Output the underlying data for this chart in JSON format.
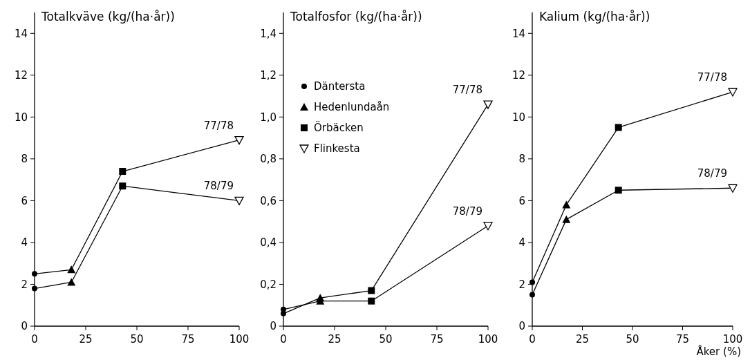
{
  "chart_data": [
    {
      "type": "line",
      "title": "Totalkväve (kg/(ha·år))",
      "xlim": [
        0,
        100
      ],
      "xticks": [
        0,
        25,
        50,
        75,
        100
      ],
      "ylim": [
        0,
        15
      ],
      "yticks": [
        0,
        2,
        4,
        6,
        8,
        10,
        12,
        14
      ],
      "grid": false,
      "legend": false,
      "line_style": "solid",
      "series": [
        {
          "name": "77/78",
          "type": "line",
          "marker": "none",
          "color": "#000000",
          "x": [
            0,
            18,
            43,
            100
          ],
          "values": [
            2.5,
            2.7,
            7.4,
            8.9
          ]
        },
        {
          "name": "78/79",
          "type": "line",
          "marker": "none",
          "color": "#000000",
          "x": [
            0,
            18,
            43,
            100
          ],
          "values": [
            1.8,
            2.1,
            6.7,
            6.0
          ]
        },
        {
          "type": "scatter",
          "marker": "circle",
          "color": "#000000",
          "x": [
            0,
            0
          ],
          "values": [
            2.5,
            1.8
          ]
        },
        {
          "type": "scatter",
          "marker": "triangle",
          "color": "#000000",
          "x": [
            18,
            18
          ],
          "values": [
            2.7,
            2.1
          ]
        },
        {
          "type": "scatter",
          "marker": "square",
          "color": "#000000",
          "x": [
            43,
            43
          ],
          "values": [
            7.4,
            6.7
          ]
        },
        {
          "type": "scatter",
          "marker": "triangle-down-open",
          "color": "#000000",
          "x": [
            100,
            100
          ],
          "values": [
            8.9,
            6.0
          ]
        }
      ]
    },
    {
      "type": "line",
      "title": "Totalfosfor (kg/(ha·år))",
      "xlim": [
        0,
        100
      ],
      "xticks": [
        0,
        25,
        50,
        75,
        100
      ],
      "ylim": [
        0,
        1.5
      ],
      "yticks": [
        {
          "value": 0,
          "label": "0"
        },
        {
          "value": 0.2,
          "label": "0,2"
        },
        {
          "value": 0.4,
          "label": "0,4"
        },
        {
          "value": 0.6,
          "label": "0,6"
        },
        {
          "value": 0.8,
          "label": "0,8"
        },
        {
          "value": 1.0,
          "label": "1,0"
        },
        {
          "value": 1.2,
          "label": "1,2"
        },
        {
          "value": 1.4,
          "label": "1,4"
        }
      ],
      "grid": false,
      "legend": "top left",
      "line_style": "solid",
      "series": [
        {
          "name": "77/78",
          "type": "line",
          "marker": "none",
          "color": "#000000",
          "x": [
            0,
            18,
            43,
            100
          ],
          "values": [
            0.06,
            0.135,
            0.17,
            1.06
          ]
        },
        {
          "name": "78/79",
          "type": "line",
          "marker": "none",
          "color": "#000000",
          "x": [
            0,
            18,
            43,
            100
          ],
          "values": [
            0.08,
            0.12,
            0.12,
            0.48
          ]
        },
        {
          "name": "Däntersta",
          "type": "scatter",
          "marker": "circle",
          "color": "#000000",
          "x": [
            0,
            0
          ],
          "values": [
            0.06,
            0.08
          ]
        },
        {
          "name": "Hedenlundaån",
          "type": "scatter",
          "marker": "triangle",
          "color": "#000000",
          "x": [
            18,
            18
          ],
          "values": [
            0.135,
            0.12
          ]
        },
        {
          "name": "Örbäcken",
          "type": "scatter",
          "marker": "square",
          "color": "#000000",
          "x": [
            43,
            43
          ],
          "values": [
            0.17,
            0.12
          ]
        },
        {
          "name": "Flinkesta",
          "type": "scatter",
          "marker": "triangle-down-open",
          "color": "#000000",
          "x": [
            100,
            100
          ],
          "values": [
            1.06,
            0.48
          ]
        }
      ]
    },
    {
      "type": "line",
      "title": "Kalium (kg/(ha·år))",
      "xlabel": "Åker (%)",
      "xlim": [
        0,
        100
      ],
      "xticks": [
        0,
        25,
        50,
        75,
        100
      ],
      "ylim": [
        0,
        15
      ],
      "yticks": [
        0,
        2,
        4,
        6,
        8,
        10,
        12,
        14
      ],
      "grid": false,
      "legend": false,
      "line_style": "solid",
      "series": [
        {
          "name": "77/78",
          "type": "line",
          "marker": "none",
          "color": "#000000",
          "x": [
            0,
            17,
            43,
            100
          ],
          "values": [
            2.1,
            5.8,
            9.5,
            11.2
          ]
        },
        {
          "name": "78/79",
          "type": "line",
          "marker": "none",
          "color": "#000000",
          "x": [
            0,
            17,
            43,
            100
          ],
          "values": [
            1.5,
            5.1,
            6.5,
            6.6
          ]
        },
        {
          "type": "scatter",
          "marker": "circle",
          "color": "#000000",
          "x": [
            0,
            0
          ],
          "values": [
            2.1,
            1.5
          ]
        },
        {
          "type": "scatter",
          "marker": "triangle",
          "color": "#000000",
          "x": [
            17,
            17
          ],
          "values": [
            5.8,
            5.1
          ]
        },
        {
          "type": "scatter",
          "marker": "square",
          "color": "#000000",
          "x": [
            43,
            43
          ],
          "values": [
            9.5,
            6.5
          ]
        },
        {
          "type": "scatter",
          "marker": "triangle-down-open",
          "color": "#000000",
          "x": [
            100,
            100
          ],
          "values": [
            11.2,
            6.6
          ]
        }
      ]
    }
  ]
}
